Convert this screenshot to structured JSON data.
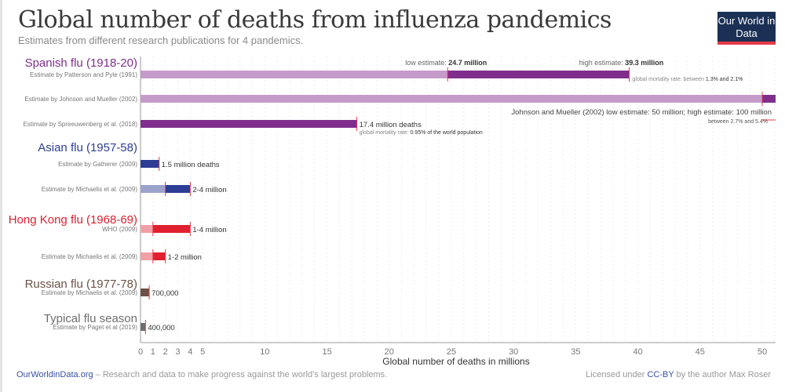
{
  "header": {
    "title": "Global number of deaths from influenza pandemics",
    "subtitle": "Estimates from different research publications for 4 pandemics.",
    "logo": "Our World in Data"
  },
  "footer": {
    "site": "OurWorldinData.org",
    "tagline": " – Research and data to make progress against the world’s largest problems.",
    "license_pre": "Licensed under ",
    "license": "CC-BY",
    "license_post": " by the author Max Roser"
  },
  "chart_data": {
    "type": "bar",
    "orientation": "horizontal",
    "title": "Global number of deaths from influenza pandemics",
    "xlabel": "Global number of deaths in millions",
    "xlim": [
      0,
      50
    ],
    "xticks": [
      0,
      1,
      2,
      3,
      4,
      5,
      10,
      15,
      20,
      25,
      30,
      35,
      40,
      45,
      50
    ],
    "groups": [
      {
        "name": "Spanish flu (1918-20)",
        "color": "#7f2e8e",
        "light": "#c59bc9",
        "rows": [
          {
            "label": "Estimate by Patterson and Pyle (1991)",
            "low": 24.7,
            "high": 39.3,
            "annot": "",
            "annot_low": "low estimate: ",
            "annot_low_v": "24.7 million",
            "annot_high": "high estimate: ",
            "annot_high_v": "39.3 million",
            "note": "global mortality rate: between ",
            "note_v": "1.3% and 2.1%"
          },
          {
            "label": "Estimate by Johnson and Mueller (2002)",
            "low": 50,
            "high": 100,
            "annot": "Johnson and Mueller (2002) low estimate: 50 million; high estimate: 100 million",
            "note": "global mortality rate: between ",
            "note_v": "between 2.7% and 5.4%"
          },
          {
            "label": "Estimate by Spreeuwenberg et al. (2018)",
            "low": 0,
            "high": 17.4,
            "annot": "17.4 million deaths",
            "note": "global mortality rate: ",
            "note_v": "0.95% of the world population"
          }
        ]
      },
      {
        "name": "Asian flu (1957-58)",
        "color": "#2d3d96",
        "light": "#9ba3cc",
        "rows": [
          {
            "label": "Estimate by Gatherer (2009)",
            "low": 0,
            "high": 1.5,
            "annot": "1.5 million deaths"
          },
          {
            "label": "Estimate by Michaelis et al. (2009)",
            "low": 2,
            "high": 4,
            "annot": "2-4 million"
          }
        ]
      },
      {
        "name": "Hong Kong flu (1968-69)",
        "color": "#e0202f",
        "light": "#f0a0a6",
        "rows": [
          {
            "label": "WHO (2009)",
            "low": 1,
            "high": 4,
            "annot": "1-4 million"
          },
          {
            "label": "Estimate by Michaelis et al. (2009)",
            "low": 1,
            "high": 2,
            "annot": "1-2 million"
          }
        ]
      },
      {
        "name": "Russian flu (1977-78)",
        "color": "#6b5147",
        "light": "#6b5147",
        "rows": [
          {
            "label": "Estimate by Michaelis et al. (2009)",
            "low": 0,
            "high": 0.7,
            "annot": "700,000"
          }
        ]
      },
      {
        "name": "Typical flu season",
        "color": "#6e6e6e",
        "light": "#6e6e6e",
        "rows": [
          {
            "label": "Estimate by Paget et al (2019)",
            "low": 0,
            "high": 0.4,
            "annot": "400,000"
          }
        ]
      }
    ]
  }
}
